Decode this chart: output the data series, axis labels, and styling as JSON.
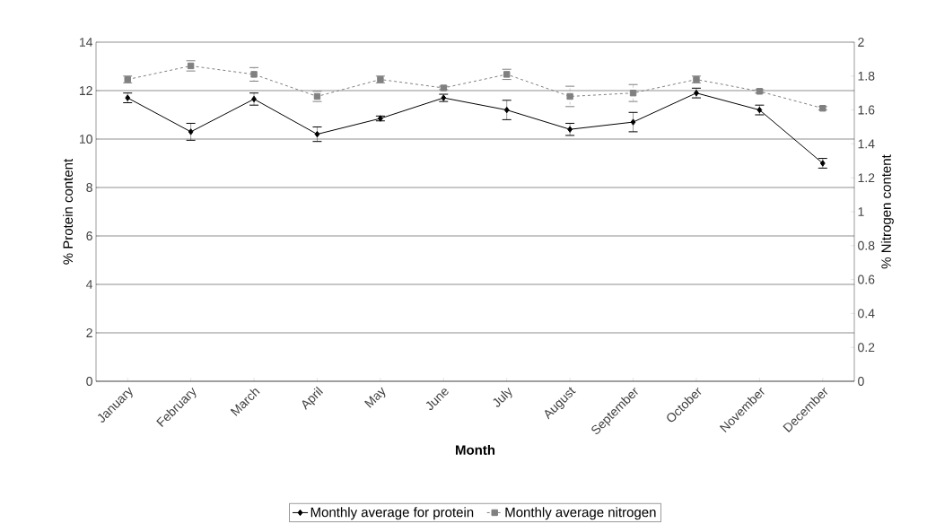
{
  "chart_data": {
    "type": "line",
    "xlabel": "Month",
    "ylabel": "% Protein content",
    "y2label": "% Nitrogen content",
    "categories": [
      "January",
      "February",
      "March",
      "April",
      "May",
      "June",
      "July",
      "August",
      "September",
      "October",
      "November",
      "December"
    ],
    "series": [
      {
        "name": "Monthly average for protein",
        "color": "#000000",
        "marker": "diamond",
        "line_style": "solid",
        "values": [
          11.7,
          10.3,
          11.65,
          10.2,
          10.85,
          11.7,
          11.2,
          10.4,
          10.7,
          11.9,
          11.2,
          9.0
        ],
        "errors": [
          0.2,
          0.35,
          0.25,
          0.3,
          0.1,
          0.15,
          0.4,
          0.25,
          0.4,
          0.2,
          0.2,
          0.2
        ]
      },
      {
        "name": "Monthly average nitrogen",
        "color": "#808080",
        "marker": "square",
        "line_style": "dashed",
        "axis": "y2",
        "values": [
          1.78,
          1.86,
          1.81,
          1.68,
          1.78,
          1.73,
          1.81,
          1.68,
          1.7,
          1.78,
          1.71,
          1.61
        ],
        "errors": [
          0.02,
          0.03,
          0.04,
          0.03,
          0.02,
          0.01,
          0.03,
          0.06,
          0.05,
          0.02,
          0.01,
          0.01
        ]
      }
    ],
    "ylim": [
      0,
      14
    ],
    "yticks": [
      0,
      2,
      4,
      6,
      8,
      10,
      12,
      14
    ],
    "y2lim": [
      0,
      2
    ],
    "y2ticks": [
      0,
      0.2,
      0.4,
      0.6,
      0.8,
      1,
      1.2,
      1.4,
      1.6,
      1.8,
      2
    ],
    "grid": "y",
    "legend": "bottom"
  }
}
